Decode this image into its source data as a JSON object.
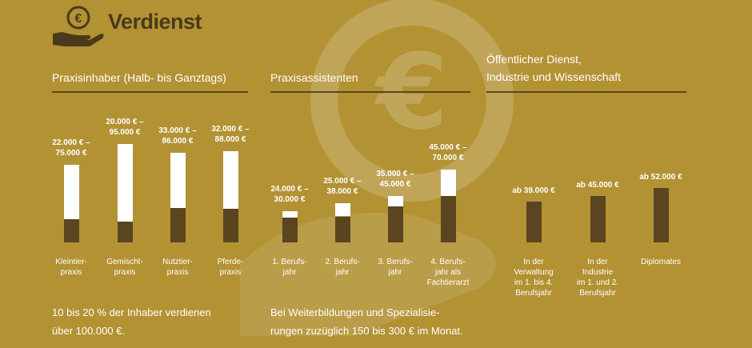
{
  "title": "Verdienst",
  "chart_data": [
    {
      "type": "range-bar",
      "title": "Praxisinhaber (Halb- bis Ganztags)",
      "categories": [
        "Kleintier-\npraxis",
        "Gemischt-\npraxis",
        "Nutztier-\npraxis",
        "Pferde-\npraxis"
      ],
      "low": [
        22000,
        20000,
        33000,
        32000
      ],
      "high": [
        75000,
        95000,
        86000,
        88000
      ],
      "low_labels": [
        "22.000 € –",
        "20.000 € –",
        "33.000 € –",
        "32.000 € –"
      ],
      "high_labels": [
        "75.000 €",
        "95.000 €",
        "86.000 €",
        "88.000 €"
      ],
      "low_color": "#5a4520",
      "high_color": "#ffffff"
    },
    {
      "type": "range-bar",
      "title": "Praxisassistenten",
      "categories": [
        "1. Berufs-\njahr",
        "2. Berufs-\njahr",
        "3. Berufs-\njahr",
        "4. Berufs-\njahr als\nFachtierarzt"
      ],
      "low": [
        24000,
        25000,
        35000,
        45000
      ],
      "high": [
        30000,
        38000,
        45000,
        70000
      ],
      "low_labels": [
        "24.000 € –",
        "25.000 € –",
        "35.000 € –",
        "45.000 € –"
      ],
      "high_labels": [
        "30.000 €",
        "38.000 €",
        "45.000 €",
        "70.000 €"
      ],
      "low_color": "#5a4520",
      "high_color": "#ffffff"
    },
    {
      "type": "bar",
      "title": "Öffentlicher Dienst,\nIndustrie und Wissenschaft",
      "categories": [
        "In der\nVerwaltung\nim 1. bis 4.\nBerufsjahr",
        "In der\nIndustrie\nim 1. und 2.\nBerufsjahr",
        "Diplomates"
      ],
      "values": [
        39000,
        45000,
        52000
      ],
      "value_labels": [
        "ab 39.000 €",
        "ab 45.000 €",
        "ab 52.000 €"
      ],
      "color": "#5a4520"
    }
  ],
  "notes": [
    "10 bis 20 % der Inhaber verdienen\nüber 100.000 €.",
    "Bei Weiterbildungen und Spezialisie-\nrungen zuzüglich 150 bis 300 € im Monat."
  ]
}
